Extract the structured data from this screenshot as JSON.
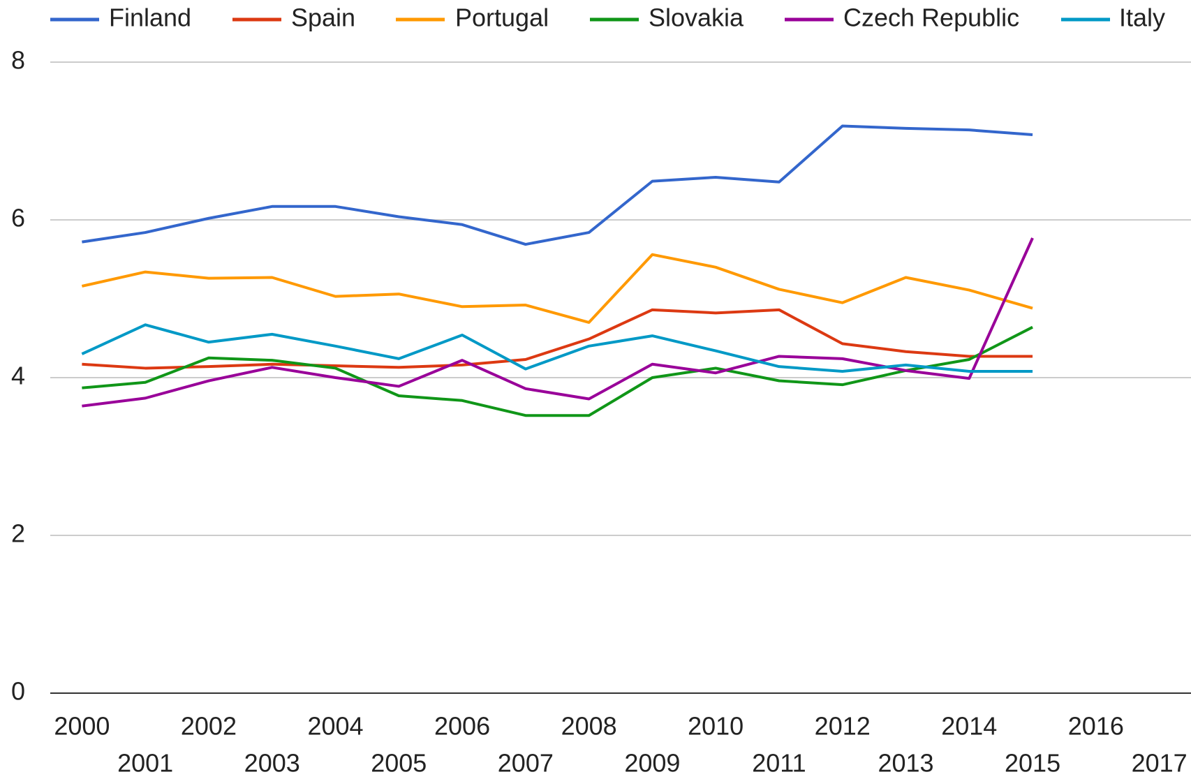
{
  "chart_data": {
    "type": "line",
    "x": [
      2000,
      2001,
      2002,
      2003,
      2004,
      2005,
      2006,
      2007,
      2008,
      2009,
      2010,
      2011,
      2012,
      2013,
      2014,
      2015
    ],
    "series": [
      {
        "name": "Finland",
        "color": "#3366cc",
        "values": [
          5.72,
          5.84,
          6.02,
          6.17,
          6.17,
          6.04,
          5.94,
          5.69,
          5.84,
          6.49,
          6.54,
          6.48,
          7.19,
          7.16,
          7.14,
          7.08
        ]
      },
      {
        "name": "Spain",
        "color": "#dc3912",
        "values": [
          4.17,
          4.12,
          4.14,
          4.17,
          4.15,
          4.13,
          4.16,
          4.23,
          4.49,
          4.86,
          4.82,
          4.86,
          4.43,
          4.33,
          4.27,
          4.27
        ]
      },
      {
        "name": "Portugal",
        "color": "#ff9900",
        "values": [
          5.16,
          5.34,
          5.26,
          5.27,
          5.03,
          5.06,
          4.9,
          4.92,
          4.7,
          5.56,
          5.4,
          5.12,
          4.95,
          5.27,
          5.11,
          4.88
        ]
      },
      {
        "name": "Slovakia",
        "color": "#109618",
        "values": [
          3.87,
          3.94,
          4.25,
          4.22,
          4.12,
          3.77,
          3.71,
          3.52,
          3.52,
          4.0,
          4.12,
          3.96,
          3.91,
          4.09,
          4.23,
          4.64
        ]
      },
      {
        "name": "Czech Republic",
        "color": "#990099",
        "values": [
          3.64,
          3.74,
          3.96,
          4.13,
          4.0,
          3.89,
          4.22,
          3.86,
          3.73,
          4.17,
          4.06,
          4.27,
          4.24,
          4.09,
          3.99,
          5.77
        ]
      },
      {
        "name": "Italy",
        "color": "#0099c6",
        "values": [
          4.3,
          4.67,
          4.45,
          4.55,
          4.4,
          4.24,
          4.54,
          4.11,
          4.4,
          4.53,
          4.34,
          4.14,
          4.08,
          4.16,
          4.08,
          4.08
        ]
      }
    ],
    "xlim": [
      1999.5,
      2017.5
    ],
    "xticks": [
      2000,
      2001,
      2002,
      2003,
      2004,
      2005,
      2006,
      2007,
      2008,
      2009,
      2010,
      2011,
      2012,
      2013,
      2014,
      2015,
      2016,
      2017
    ],
    "ylim": [
      0,
      8
    ],
    "yticks": [
      0,
      2,
      4,
      6,
      8
    ],
    "grid": true,
    "legend": "top"
  }
}
